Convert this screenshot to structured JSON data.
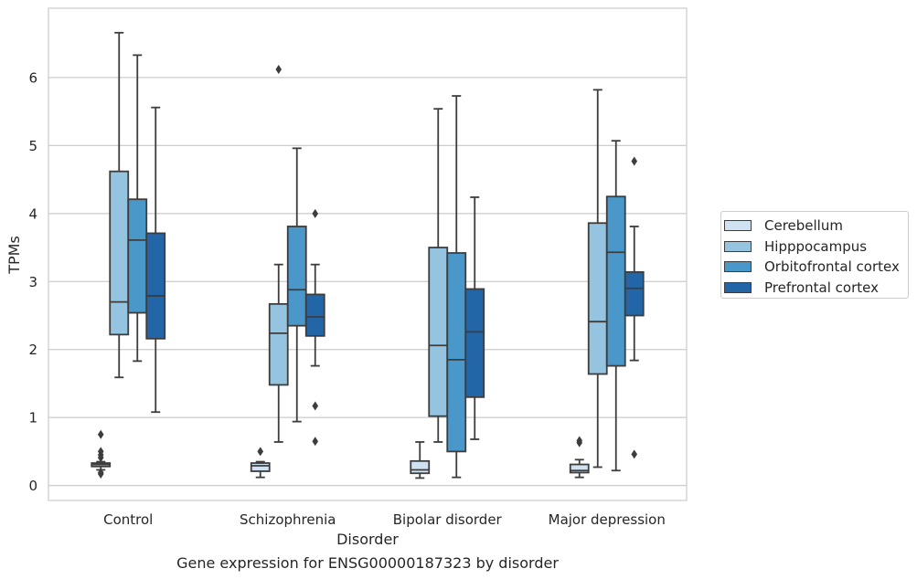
{
  "chart_data": {
    "type": "boxplot",
    "title": "Gene expression for ENSG00000187323 by disorder",
    "xlabel": "Disorder",
    "ylabel": "TPMs",
    "ylim": [
      -0.22,
      7.02
    ],
    "yticks": [
      0,
      1,
      2,
      3,
      4,
      5,
      6
    ],
    "grid": true,
    "legend_position": "right",
    "categories": [
      "Control",
      "Schizophrenia",
      "Bipolar disorder",
      "Major depression"
    ],
    "series": [
      {
        "name": "Cerebellum",
        "color": "#d0e1f2",
        "boxes": [
          {
            "whislo": 0.23,
            "q1": 0.28,
            "med": 0.31,
            "q3": 0.33,
            "whishi": 0.35,
            "fliers": [
              0.17,
              0.19,
              0.41,
              0.45,
              0.5,
              0.75
            ]
          },
          {
            "whislo": 0.12,
            "q1": 0.21,
            "med": 0.29,
            "q3": 0.33,
            "whishi": 0.35,
            "fliers": [
              0.5
            ]
          },
          {
            "whislo": 0.11,
            "q1": 0.18,
            "med": 0.23,
            "q3": 0.36,
            "whishi": 0.64,
            "fliers": []
          },
          {
            "whislo": 0.12,
            "q1": 0.19,
            "med": 0.22,
            "q3": 0.31,
            "whishi": 0.38,
            "fliers": [
              0.63,
              0.66
            ]
          }
        ]
      },
      {
        "name": "Hipppocampus",
        "color": "#94c4df",
        "boxes": [
          {
            "whislo": 1.59,
            "q1": 2.22,
            "med": 2.7,
            "q3": 4.62,
            "whishi": 6.66,
            "fliers": []
          },
          {
            "whislo": 0.64,
            "q1": 1.48,
            "med": 2.24,
            "q3": 2.67,
            "whishi": 3.25,
            "fliers": [
              6.12
            ]
          },
          {
            "whislo": 0.64,
            "q1": 1.02,
            "med": 2.06,
            "q3": 3.5,
            "whishi": 5.54,
            "fliers": []
          },
          {
            "whislo": 0.27,
            "q1": 1.64,
            "med": 2.41,
            "q3": 3.86,
            "whishi": 5.82,
            "fliers": []
          }
        ]
      },
      {
        "name": "Orbitofrontal cortex",
        "color": "#4a98c9",
        "boxes": [
          {
            "whislo": 1.83,
            "q1": 2.54,
            "med": 3.61,
            "q3": 4.21,
            "whishi": 6.33,
            "fliers": []
          },
          {
            "whislo": 0.94,
            "q1": 2.35,
            "med": 2.88,
            "q3": 3.81,
            "whishi": 4.96,
            "fliers": []
          },
          {
            "whislo": 0.12,
            "q1": 0.5,
            "med": 1.85,
            "q3": 3.42,
            "whishi": 5.73,
            "fliers": []
          },
          {
            "whislo": 0.22,
            "q1": 1.76,
            "med": 3.43,
            "q3": 4.25,
            "whishi": 5.07,
            "fliers": []
          }
        ]
      },
      {
        "name": "Prefrontal cortex",
        "color": "#2366a8",
        "boxes": [
          {
            "whislo": 1.08,
            "q1": 2.16,
            "med": 2.79,
            "q3": 3.71,
            "whishi": 5.56,
            "fliers": []
          },
          {
            "whislo": 1.76,
            "q1": 2.2,
            "med": 2.48,
            "q3": 2.81,
            "whishi": 3.25,
            "fliers": [
              0.65,
              1.17,
              4.0
            ]
          },
          {
            "whislo": 0.68,
            "q1": 1.3,
            "med": 2.26,
            "q3": 2.89,
            "whishi": 4.24,
            "fliers": []
          },
          {
            "whislo": 1.84,
            "q1": 2.5,
            "med": 2.9,
            "q3": 3.14,
            "whishi": 3.81,
            "fliers": [
              0.46,
              4.77
            ]
          }
        ]
      }
    ]
  }
}
